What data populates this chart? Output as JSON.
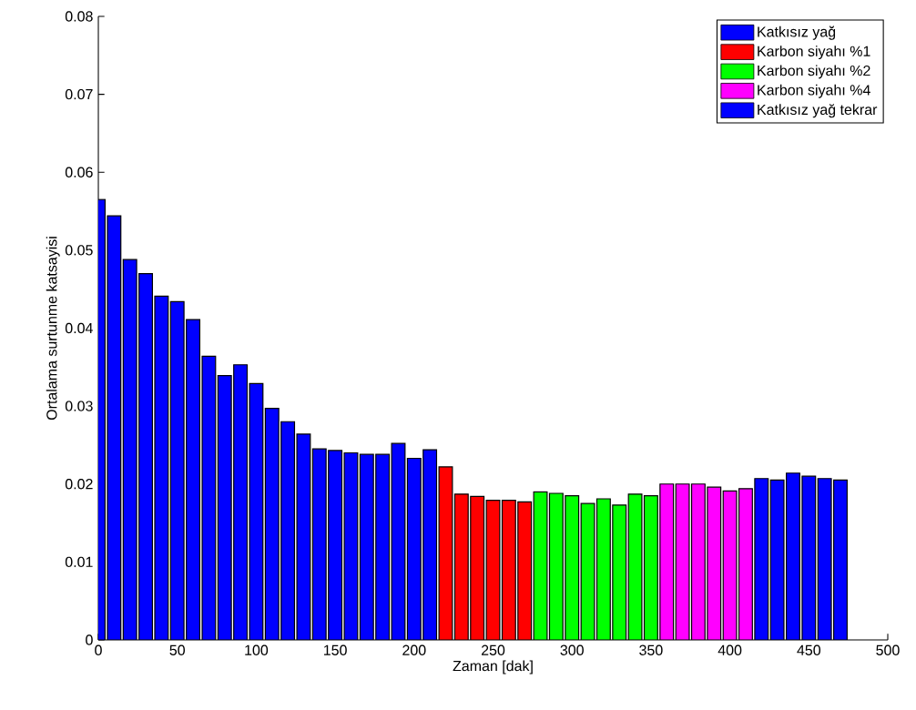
{
  "chart_data": {
    "type": "bar",
    "xlabel": "Zaman [dak]",
    "ylabel": "Ortalama surtunme katsayisi",
    "xlim": [
      0,
      500
    ],
    "ylim": [
      0,
      0.08
    ],
    "xticks": [
      0,
      50,
      100,
      150,
      200,
      250,
      300,
      350,
      400,
      450,
      500
    ],
    "yticks": [
      0,
      0.01,
      0.02,
      0.03,
      0.04,
      0.05,
      0.06,
      0.07,
      0.08
    ],
    "grid": false,
    "legend": "top right",
    "series": [
      {
        "name": "Katkısız yağ",
        "color": "#0000ff",
        "x": [
          0,
          10,
          20,
          30,
          40,
          50,
          60,
          70,
          80,
          90,
          100,
          110,
          120,
          130,
          140,
          150,
          160,
          170,
          180,
          190,
          200,
          210
        ],
        "values": [
          0.0565,
          0.0544,
          0.0488,
          0.047,
          0.0441,
          0.0434,
          0.0411,
          0.0364,
          0.0339,
          0.0353,
          0.0329,
          0.0297,
          0.028,
          0.0264,
          0.0245,
          0.0243,
          0.024,
          0.0238,
          0.0238,
          0.0252,
          0.0233,
          0.0244
        ]
      },
      {
        "name": "Karbon siyahı %1",
        "color": "#ff0000",
        "x": [
          220,
          230,
          240,
          250,
          260,
          270
        ],
        "values": [
          0.0222,
          0.0187,
          0.0184,
          0.0179,
          0.0179,
          0.0177
        ]
      },
      {
        "name": "Karbon siyahı %2",
        "color": "#00ff00",
        "x": [
          280,
          290,
          300,
          310,
          320,
          330,
          340,
          350
        ],
        "values": [
          0.019,
          0.0188,
          0.0185,
          0.0175,
          0.0181,
          0.0173,
          0.0187,
          0.0185
        ]
      },
      {
        "name": "Karbon siyahı %4",
        "color": "#ff00ff",
        "x": [
          360,
          370,
          380,
          390,
          400,
          410
        ],
        "values": [
          0.02,
          0.02,
          0.02,
          0.0196,
          0.0191,
          0.0194
        ]
      },
      {
        "name": "Katkısız yağ tekrar",
        "color": "#0000ff",
        "x": [
          420,
          430,
          440,
          450,
          460,
          470
        ],
        "values": [
          0.0207,
          0.0205,
          0.0214,
          0.021,
          0.0207,
          0.0205
        ]
      }
    ]
  }
}
